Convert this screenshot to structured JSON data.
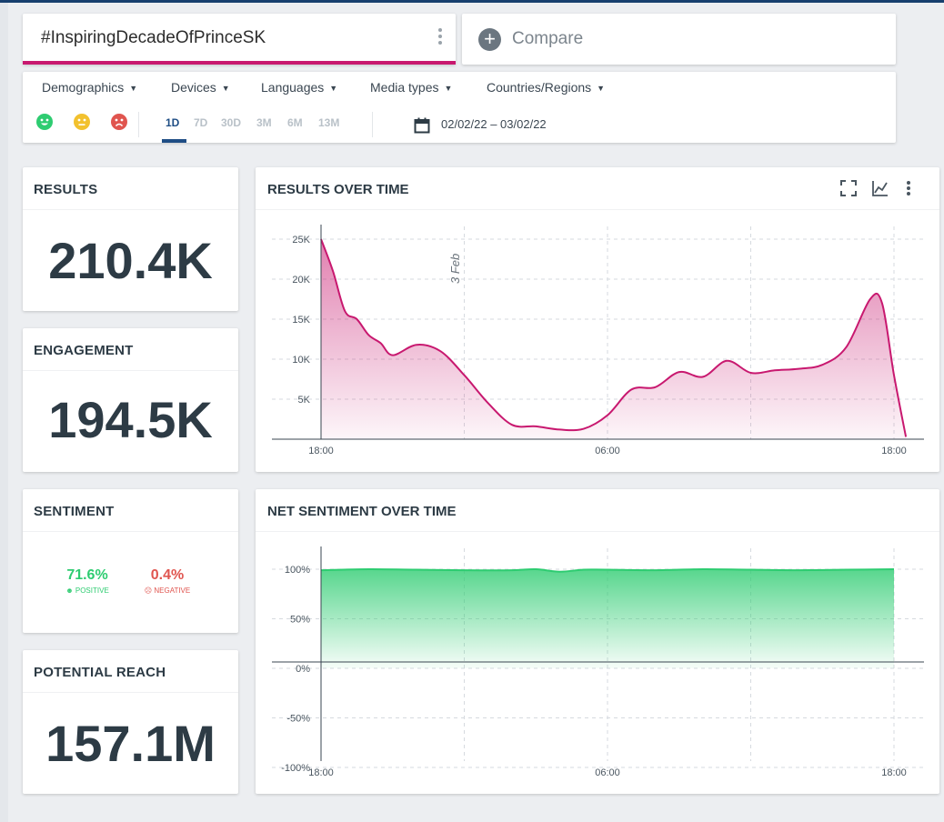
{
  "search": {
    "query": "#InspiringDecadeOfPrinceSK"
  },
  "compare": {
    "label": "Compare"
  },
  "filters": {
    "dropdowns": [
      "Demographics",
      "Devices",
      "Languages",
      "Media types",
      "Countries/Regions"
    ],
    "sentiment_faces": [
      "positive-face-icon",
      "neutral-face-icon",
      "negative-face-icon"
    ],
    "ranges": [
      "1D",
      "7D",
      "30D",
      "3M",
      "6M",
      "13M"
    ],
    "active_range": "1D",
    "date_range": "02/02/22 – 03/02/22"
  },
  "colors": {
    "accent_pink": "#c8186f",
    "positive": "#2ecc71",
    "negative": "#e0554f",
    "neutral": "#f2c12e",
    "nav_blue": "#1f4e85"
  },
  "metrics": {
    "results": {
      "title": "RESULTS",
      "value": "210.4K"
    },
    "engagement": {
      "title": "ENGAGEMENT",
      "value": "194.5K"
    },
    "sentiment": {
      "title": "SENTIMENT",
      "positive_value": "71.6%",
      "positive_label": "POSITIVE",
      "negative_value": "0.4%",
      "negative_label": "NEGATIVE"
    },
    "reach": {
      "title": "POTENTIAL REACH",
      "value": "157.1M"
    }
  },
  "charts": {
    "results_title": "RESULTS OVER TIME",
    "sentiment_title": "NET SENTIMENT OVER TIME",
    "tools": [
      "expand-icon",
      "line-chart-icon",
      "more-vert-icon"
    ]
  },
  "chart_data": [
    {
      "type": "area",
      "title": "RESULTS OVER TIME",
      "x_ticks": [
        "18:00",
        "06:00",
        "18:00"
      ],
      "y_ticks": [
        "5K",
        "10K",
        "15K",
        "20K",
        "25K"
      ],
      "ylim": [
        0,
        25000
      ],
      "annotation": "3 Feb",
      "grid": true,
      "color": "#c8186f",
      "x_hours": [
        0,
        0.5,
        1,
        1.5,
        2,
        2.5,
        3,
        4,
        5,
        6,
        7,
        8,
        9,
        10,
        11,
        12,
        13,
        14,
        15,
        16,
        17,
        18,
        19,
        20,
        21,
        22,
        23,
        23.5,
        24,
        24.5
      ],
      "values": [
        25000,
        21000,
        16000,
        15000,
        13000,
        12000,
        10500,
        11800,
        11000,
        8000,
        4500,
        1800,
        1600,
        1200,
        1300,
        3000,
        6200,
        6500,
        8400,
        7800,
        9800,
        8300,
        8600,
        8800,
        9300,
        11500,
        17500,
        17000,
        8000,
        300
      ]
    },
    {
      "type": "area",
      "title": "NET SENTIMENT OVER TIME",
      "x_ticks": [
        "18:00",
        "06:00",
        "18:00"
      ],
      "y_ticks": [
        "100%",
        "50%",
        "0%",
        "-50%",
        "-100%"
      ],
      "ylim": [
        -100,
        100
      ],
      "grid": true,
      "color": "#2ecc71",
      "x_hours": [
        0,
        2,
        4,
        6,
        8,
        9,
        10,
        11,
        12,
        14,
        16,
        18,
        20,
        22,
        24
      ],
      "values": [
        99,
        100,
        99.5,
        99,
        99,
        100,
        97.5,
        99.5,
        99.5,
        99,
        100,
        99.5,
        99,
        99.5,
        100
      ]
    }
  ]
}
